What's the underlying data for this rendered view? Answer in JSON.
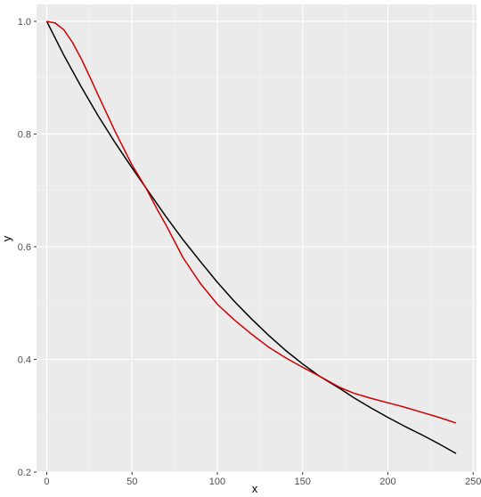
{
  "chart_data": {
    "type": "line",
    "xlabel": "x",
    "ylabel": "y",
    "xlim": [
      -6,
      252
    ],
    "ylim": [
      0.2,
      1.03
    ],
    "x_ticks": [
      0,
      50,
      100,
      150,
      200,
      250
    ],
    "y_ticks": [
      0.2,
      0.4,
      0.6,
      0.8,
      1.0
    ],
    "x_tick_labels": [
      "0",
      "50",
      "100",
      "150",
      "200",
      "250"
    ],
    "y_tick_labels": [
      "0.2",
      "0.4",
      "0.6",
      "0.8",
      "1.0"
    ],
    "grid": true,
    "legend": "none",
    "series": [
      {
        "color": "#000000",
        "points": [
          [
            0,
            1.0
          ],
          [
            10,
            0.94
          ],
          [
            20,
            0.885
          ],
          [
            30,
            0.833
          ],
          [
            40,
            0.785
          ],
          [
            50,
            0.74
          ],
          [
            58,
            0.705
          ],
          [
            70,
            0.653
          ],
          [
            80,
            0.612
          ],
          [
            90,
            0.574
          ],
          [
            100,
            0.537
          ],
          [
            110,
            0.503
          ],
          [
            120,
            0.472
          ],
          [
            130,
            0.443
          ],
          [
            140,
            0.416
          ],
          [
            150,
            0.392
          ],
          [
            160,
            0.37
          ],
          [
            172,
            0.348
          ],
          [
            180,
            0.332
          ],
          [
            190,
            0.314
          ],
          [
            200,
            0.297
          ],
          [
            210,
            0.281
          ],
          [
            220,
            0.266
          ],
          [
            230,
            0.25
          ],
          [
            240,
            0.233
          ]
        ]
      },
      {
        "color": "#cc0000",
        "points": [
          [
            0,
            1.0
          ],
          [
            5,
            0.997
          ],
          [
            10,
            0.985
          ],
          [
            15,
            0.963
          ],
          [
            20,
            0.935
          ],
          [
            25,
            0.903
          ],
          [
            30,
            0.87
          ],
          [
            40,
            0.805
          ],
          [
            50,
            0.745
          ],
          [
            58,
            0.705
          ],
          [
            65,
            0.665
          ],
          [
            70,
            0.638
          ],
          [
            80,
            0.58
          ],
          [
            90,
            0.535
          ],
          [
            100,
            0.498
          ],
          [
            110,
            0.47
          ],
          [
            120,
            0.445
          ],
          [
            130,
            0.422
          ],
          [
            140,
            0.403
          ],
          [
            150,
            0.386
          ],
          [
            160,
            0.37
          ],
          [
            172,
            0.35
          ],
          [
            180,
            0.34
          ],
          [
            190,
            0.331
          ],
          [
            200,
            0.323
          ],
          [
            210,
            0.315
          ],
          [
            220,
            0.306
          ],
          [
            230,
            0.297
          ],
          [
            240,
            0.287
          ]
        ]
      }
    ]
  }
}
